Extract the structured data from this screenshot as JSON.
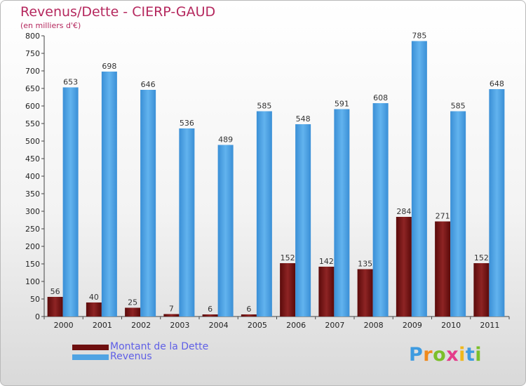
{
  "chart_data": {
    "type": "bar",
    "title": "Revenus/Dette - CIERP-GAUD",
    "subtitle": "(en milliers d'€)",
    "categories": [
      "2000",
      "2001",
      "2002",
      "2003",
      "2004",
      "2005",
      "2006",
      "2007",
      "2008",
      "2009",
      "2010",
      "2011"
    ],
    "series": [
      {
        "name": "Montant de la Dette",
        "values": [
          56,
          40,
          25,
          7,
          6,
          6,
          152,
          142,
          135,
          284,
          271,
          152
        ],
        "color": "#7a1212"
      },
      {
        "name": "Revenus",
        "values": [
          653,
          698,
          646,
          536,
          489,
          585,
          548,
          591,
          608,
          785,
          585,
          648
        ],
        "color": "#4fa3e3"
      }
    ],
    "ylim": [
      0,
      800
    ],
    "yticks": [
      0,
      50,
      100,
      150,
      200,
      250,
      300,
      350,
      400,
      450,
      500,
      550,
      600,
      650,
      700,
      750,
      800
    ],
    "grid": false,
    "legend_position": "bottom-left"
  },
  "legend": [
    {
      "label": "Montant de la Dette",
      "color": "#6e0f0f"
    },
    {
      "label": "Revenus",
      "color": "#4fa3e3"
    }
  ],
  "logo": {
    "letters": [
      "P",
      "r",
      "o",
      "x",
      "i",
      "t",
      "i"
    ],
    "colors": [
      "#3e9be0",
      "#f08a1c",
      "#7bbf2a",
      "#e43c8a",
      "#f0b81c",
      "#3e9be0",
      "#7bbf2a"
    ]
  }
}
